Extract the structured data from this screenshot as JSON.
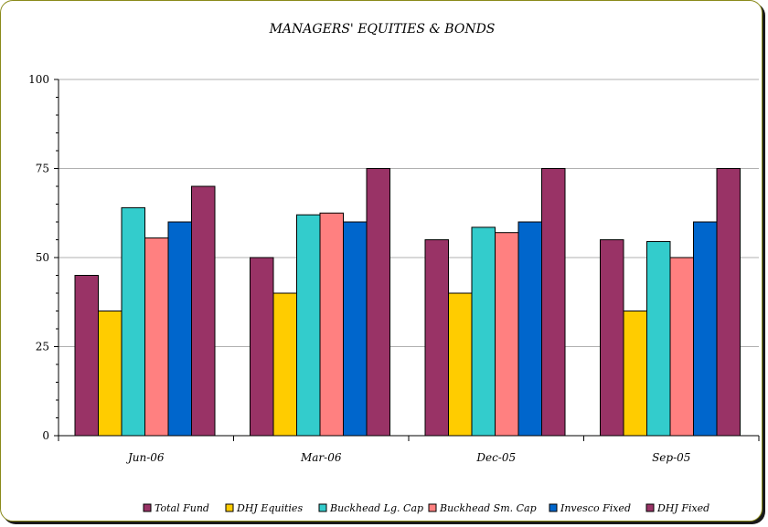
{
  "chart_data": {
    "type": "bar",
    "title": "MANAGERS' EQUITIES & BONDS",
    "xlabel": "",
    "ylabel": "",
    "ylim": [
      0,
      100
    ],
    "yticks": [
      "0",
      "25",
      "50",
      "75",
      "100"
    ],
    "grid": true,
    "legend_position": "bottom",
    "categories": [
      "Jun-06",
      "Mar-06",
      "Dec-05",
      "Sep-05"
    ],
    "series": [
      {
        "name": "Total Fund",
        "color": "#993366",
        "values": [
          45,
          50,
          55,
          55
        ]
      },
      {
        "name": "DHJ Equities",
        "color": "#ffcc00",
        "values": [
          35,
          40,
          40,
          35
        ]
      },
      {
        "name": "Buckhead Lg. Cap",
        "color": "#33cccc",
        "values": [
          64,
          62,
          58.5,
          54.5
        ]
      },
      {
        "name": "Buckhead Sm. Cap",
        "color": "#ff8080",
        "values": [
          55.5,
          62.5,
          57,
          50
        ]
      },
      {
        "name": "Invesco Fixed",
        "color": "#0066cc",
        "values": [
          60,
          60,
          60,
          60
        ]
      },
      {
        "name": "DHJ Fixed",
        "color": "#993366",
        "values": [
          70,
          75,
          75,
          75
        ]
      }
    ]
  }
}
